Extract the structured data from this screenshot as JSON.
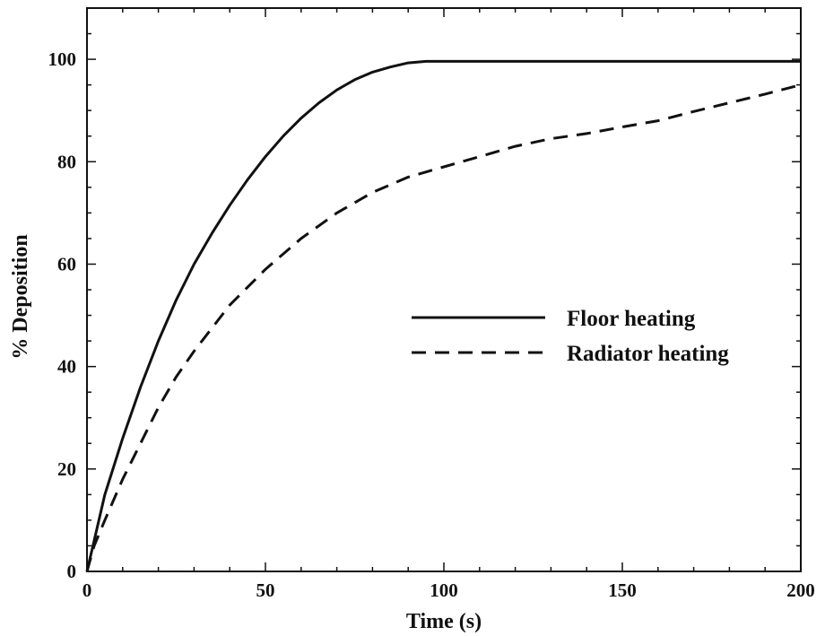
{
  "chart_data": {
    "type": "line",
    "xlabel": "Time (s)",
    "ylabel": "% Deposition",
    "xlim": [
      0,
      200
    ],
    "ylim": [
      0,
      110
    ],
    "xticks": [
      0,
      50,
      100,
      150,
      200
    ],
    "yticks": [
      0,
      20,
      40,
      60,
      80,
      100
    ],
    "grid": false,
    "legend_position": "center-right",
    "series": [
      {
        "name": "Floor heating",
        "style": "solid",
        "color": "#111111",
        "x": [
          0,
          2,
          5,
          10,
          15,
          20,
          25,
          30,
          35,
          40,
          45,
          50,
          55,
          60,
          65,
          70,
          75,
          80,
          85,
          90,
          95,
          100,
          150,
          200
        ],
        "y": [
          0,
          6,
          15,
          26,
          36,
          45,
          53,
          60,
          66,
          71.5,
          76.5,
          81,
          85,
          88.5,
          91.5,
          94,
          96,
          97.5,
          98.5,
          99.3,
          99.6,
          99.6,
          99.6,
          99.6
        ]
      },
      {
        "name": "Radiator heating",
        "style": "dashed",
        "color": "#111111",
        "x": [
          0,
          2,
          5,
          10,
          15,
          20,
          25,
          30,
          40,
          50,
          60,
          70,
          80,
          90,
          100,
          110,
          120,
          130,
          140,
          150,
          160,
          170,
          180,
          190,
          200
        ],
        "y": [
          0,
          5,
          10,
          18,
          25,
          32,
          38,
          43,
          52,
          59,
          65,
          70,
          74,
          77,
          79,
          81,
          83,
          84.5,
          85.5,
          86.8,
          88,
          89.8,
          91.5,
          93.2,
          95
        ]
      }
    ]
  }
}
